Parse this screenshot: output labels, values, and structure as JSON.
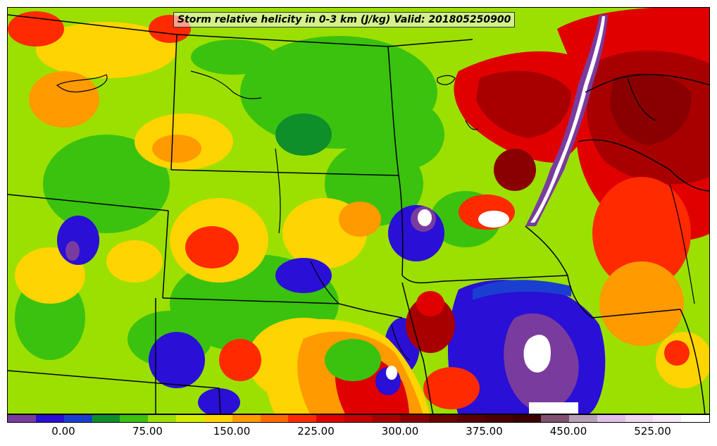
{
  "map": {
    "title": "Storm relative helicity in 0-3 km (J/kg) Valid: 201805250900"
  },
  "colorbar": {
    "colors": [
      "#7a3b9e",
      "#2a0fd6",
      "#1a3fd0",
      "#0f8f2a",
      "#3ac20f",
      "#9be000",
      "#d4ee00",
      "#ffd400",
      "#ff9a00",
      "#ff6a00",
      "#ff2a00",
      "#e00000",
      "#c40000",
      "#a80000",
      "#8a0000",
      "#6e0000",
      "#5a0000",
      "#4a0000",
      "#3c0000",
      "#805070",
      "#b8a0b8",
      "#e0c0e8",
      "#f0d8f0",
      "#f6e8f6",
      "#ffffff"
    ],
    "tick_labels": [
      "0.00",
      "75.00",
      "150.00",
      "225.00",
      "300.00",
      "375.00",
      "450.00",
      "525.00"
    ]
  }
}
